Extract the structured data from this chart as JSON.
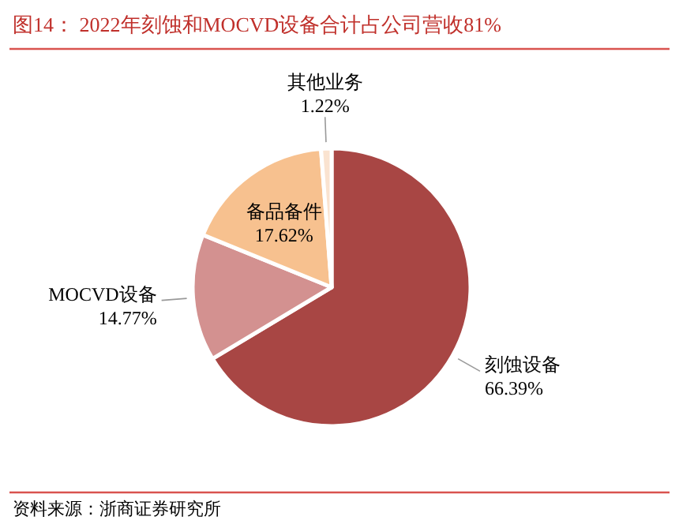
{
  "chart_data": {
    "type": "pie",
    "title": "图14：  2022年刻蚀和MOCVD设备合计占公司营收81%",
    "categories": [
      "刻蚀设备",
      "MOCVD设备",
      "备品备件",
      "其他业务"
    ],
    "values": [
      66.39,
      14.77,
      17.62,
      1.22
    ],
    "colors": [
      "#a84644",
      "#d39190",
      "#f7c18f",
      "#fae3d0"
    ],
    "value_labels": [
      "66.39%",
      "14.77%",
      "17.62%",
      "1.22%"
    ],
    "annotations": [
      "资料来源：浙商证券研究所"
    ]
  }
}
